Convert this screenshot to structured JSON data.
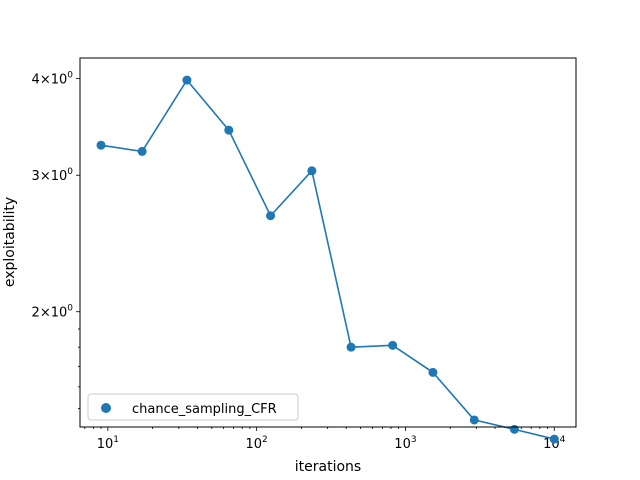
{
  "chart_data": {
    "type": "line",
    "title": "",
    "xlabel": "iterations",
    "ylabel": "exploitability",
    "xscale": "log",
    "yscale": "log",
    "xlim": [
      6.5,
      14000
    ],
    "ylim": [
      1.42,
      4.25
    ],
    "grid": false,
    "legend_position": "lower-left",
    "x_ticks": [
      {
        "value": 10,
        "base": "10",
        "exp": "1"
      },
      {
        "value": 100,
        "base": "10",
        "exp": "2"
      },
      {
        "value": 1000,
        "base": "10",
        "exp": "3"
      },
      {
        "value": 10000,
        "base": "10",
        "exp": "4"
      }
    ],
    "y_ticks": [
      {
        "value": 2,
        "text": "2×10",
        "exp": "0"
      },
      {
        "value": 3,
        "text": "3×10",
        "exp": "0"
      },
      {
        "value": 4,
        "text": "4×10",
        "exp": "0"
      }
    ],
    "series": [
      {
        "name": "chance_sampling_CFR",
        "color": "#1f77b4",
        "x": [
          9,
          17,
          34,
          65,
          124,
          235,
          431,
          820,
          1530,
          2900,
          5400,
          10000
        ],
        "y": [
          3.28,
          3.22,
          3.98,
          3.43,
          2.66,
          3.04,
          1.8,
          1.81,
          1.67,
          1.45,
          1.41,
          1.37
        ]
      }
    ]
  }
}
